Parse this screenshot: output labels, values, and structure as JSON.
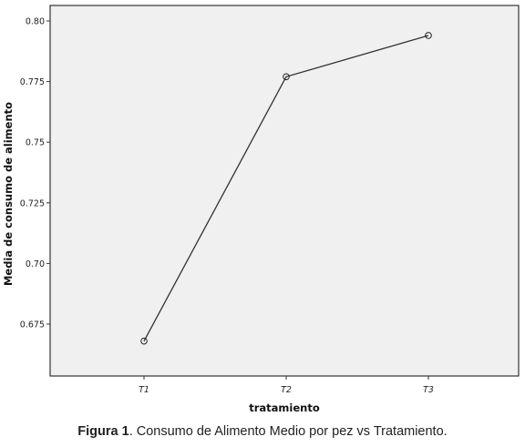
{
  "chart_data": {
    "type": "line",
    "categories": [
      "T1",
      "T2",
      "T3"
    ],
    "values": [
      0.668,
      0.777,
      0.794
    ],
    "xlabel": "tratamiento",
    "ylabel": "Media de consumo de alimento",
    "ylim": [
      0.66,
      0.805
    ],
    "yticks": [
      "0.675",
      "0.70",
      "0.725",
      "0.75",
      "0.775",
      "0.80"
    ],
    "ytick_values": [
      0.675,
      0.7,
      0.725,
      0.75,
      0.775,
      0.8
    ],
    "grid": false,
    "legend": "none",
    "colors": {
      "plot_bg": "#f0f0f0",
      "line": "#333333",
      "border": "#333333"
    }
  },
  "caption": {
    "label": "Figura 1",
    "text": ". Consumo de Alimento Medio por pez vs Tratamiento."
  }
}
